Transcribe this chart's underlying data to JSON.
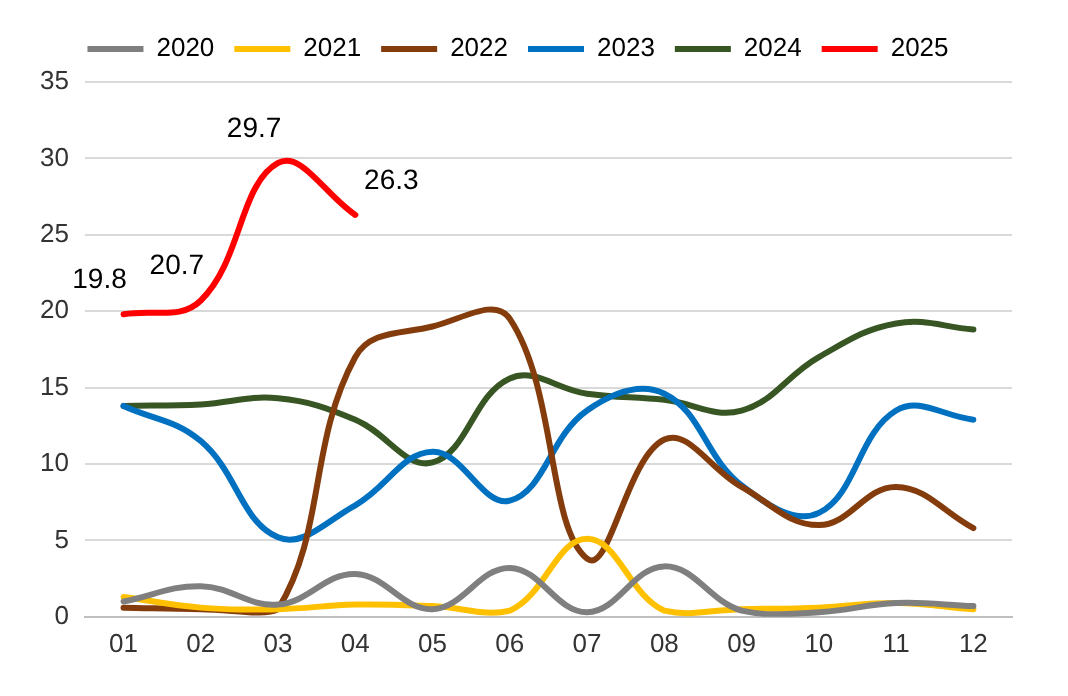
{
  "chart_data": {
    "type": "line",
    "categories": [
      "01",
      "02",
      "03",
      "04",
      "05",
      "06",
      "07",
      "08",
      "09",
      "10",
      "11",
      "12"
    ],
    "series": [
      {
        "name": "2020",
        "color": "#7f7f7f",
        "values": [
          1.0,
          2.0,
          0.8,
          2.8,
          0.5,
          3.2,
          0.3,
          3.3,
          0.4,
          0.3,
          0.9,
          0.7
        ]
      },
      {
        "name": "2021",
        "color": "#ffc000",
        "values": [
          1.3,
          0.6,
          0.5,
          0.8,
          0.7,
          0.4,
          5.1,
          0.4,
          0.5,
          0.6,
          0.9,
          0.5
        ]
      },
      {
        "name": "2022",
        "color": "#843c0c",
        "values": [
          0.6,
          0.5,
          0.5,
          17.0,
          19.0,
          19.5,
          3.8,
          11.6,
          8.5,
          6.0,
          8.5,
          5.8
        ]
      },
      {
        "name": "2023",
        "color": "#0070c0",
        "values": [
          13.8,
          11.5,
          5.2,
          7.3,
          10.8,
          7.6,
          13.5,
          14.6,
          8.6,
          6.8,
          13.5,
          12.9
        ]
      },
      {
        "name": "2024",
        "color": "#375623",
        "values": [
          13.8,
          13.9,
          14.3,
          12.9,
          10.1,
          15.6,
          14.6,
          14.2,
          13.5,
          17.0,
          19.2,
          18.8
        ]
      },
      {
        "name": "2025",
        "color": "#ff0000",
        "values": [
          19.8,
          20.7,
          29.7,
          26.3,
          null,
          null,
          null,
          null,
          null,
          null,
          null,
          null
        ],
        "value_labels": [
          "19.8",
          "20.7",
          "29.7",
          "26.3",
          null,
          null,
          null,
          null,
          null,
          null,
          null,
          null
        ]
      }
    ],
    "ylim": [
      0,
      35
    ],
    "yticks": [
      0,
      5,
      10,
      15,
      20,
      25,
      30,
      35
    ],
    "grid": "y",
    "legend": "top",
    "marker": "none",
    "line_style": "solid"
  }
}
